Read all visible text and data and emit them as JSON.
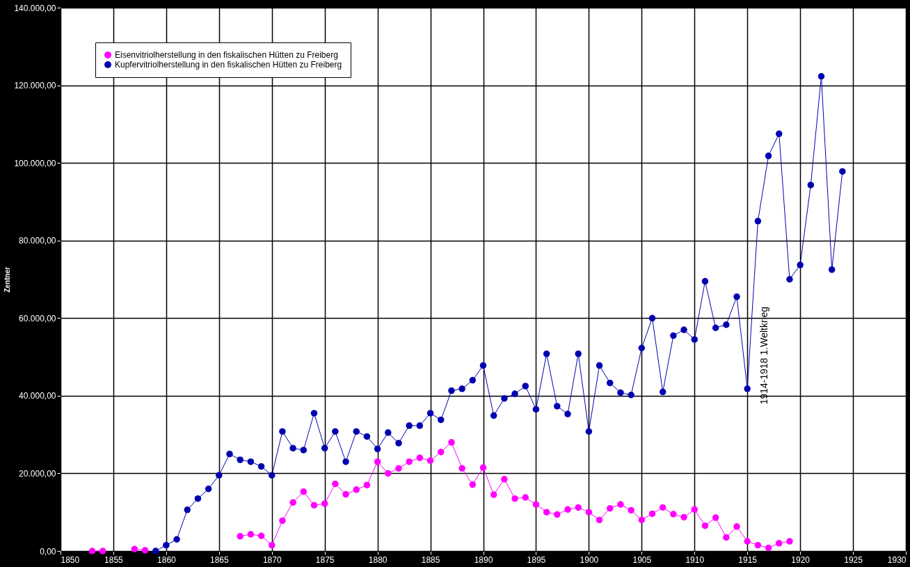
{
  "chart_data": {
    "type": "line",
    "ylabel": "Zentner",
    "x": [
      1853,
      1854,
      1855,
      1856,
      1857,
      1858,
      1859,
      1860,
      1861,
      1862,
      1863,
      1864,
      1865,
      1866,
      1867,
      1868,
      1869,
      1870,
      1871,
      1872,
      1873,
      1874,
      1875,
      1876,
      1877,
      1878,
      1879,
      1880,
      1881,
      1882,
      1883,
      1884,
      1885,
      1886,
      1887,
      1888,
      1889,
      1890,
      1891,
      1892,
      1893,
      1894,
      1895,
      1896,
      1897,
      1898,
      1899,
      1900,
      1901,
      1902,
      1903,
      1904,
      1905,
      1906,
      1907,
      1908,
      1909,
      1910,
      1911,
      1912,
      1913,
      1914,
      1915,
      1916,
      1917,
      1918,
      1919,
      1920,
      1921,
      1922,
      1923,
      1924
    ],
    "series": [
      {
        "name": "Eisenvitriolherstellung in den fiskalischen Hütten zu Freiberg",
        "color": "#ff00ff",
        "values": [
          0,
          0,
          null,
          null,
          500,
          200,
          null,
          null,
          null,
          null,
          null,
          null,
          null,
          null,
          3800,
          4300,
          3900,
          1500,
          7800,
          12500,
          15300,
          11800,
          12200,
          17300,
          14600,
          15800,
          17000,
          23000,
          20000,
          21300,
          23000,
          24000,
          23300,
          25500,
          28000,
          21300,
          17100,
          21500,
          14500,
          18500,
          13500,
          13800,
          12000,
          10000,
          9400,
          10700,
          11200,
          10000,
          8000,
          11000,
          12000,
          10500,
          8000,
          9600,
          11200,
          9500,
          8700,
          10700,
          6500,
          8600,
          3500,
          6300,
          2500,
          1500,
          800,
          2000,
          2500,
          null,
          null,
          null,
          null,
          null
        ]
      },
      {
        "name": "Kupfervitriolherstellung in den fiskalischen Hütten zu Freiberg",
        "color": "#0000b0",
        "values": [
          null,
          null,
          null,
          null,
          null,
          null,
          0,
          1500,
          3000,
          10600,
          13500,
          16000,
          19500,
          25000,
          23500,
          23000,
          21800,
          19500,
          30800,
          26500,
          26000,
          35500,
          26500,
          30800,
          23000,
          30800,
          29500,
          26300,
          30500,
          27800,
          32300,
          32300,
          35500,
          33800,
          41300,
          41800,
          44000,
          47800,
          34900,
          39300,
          40500,
          42500,
          36500,
          50800,
          37300,
          35300,
          50800,
          30800,
          47800,
          43300,
          40800,
          40200,
          52300,
          60000,
          41000,
          55500,
          57000,
          54500,
          69500,
          57500,
          58300,
          65500,
          41800,
          85000,
          101800,
          107500,
          70000,
          73700,
          94300,
          122300,
          72500,
          97800
        ]
      }
    ],
    "xlim": [
      1850,
      1930
    ],
    "xticks": [
      1850,
      1855,
      1860,
      1865,
      1870,
      1875,
      1880,
      1885,
      1890,
      1895,
      1900,
      1905,
      1910,
      1915,
      1920,
      1925,
      1930
    ],
    "ylim": [
      0,
      140000
    ],
    "yticks": [
      {
        "value": 0,
        "label": "0,00"
      },
      {
        "value": 20000,
        "label": "20.000,00"
      },
      {
        "value": 40000,
        "label": "40.000,00"
      },
      {
        "value": 60000,
        "label": "60.000,00"
      },
      {
        "value": 80000,
        "label": "80.000,00"
      },
      {
        "value": 100000,
        "label": "100.000,00"
      },
      {
        "value": 120000,
        "label": "120.000,00"
      },
      {
        "value": 140000,
        "label": "140.000,00"
      }
    ],
    "annotations": [
      "1914-1918  1.Weltkrieg"
    ],
    "grid": true,
    "legend": "top left",
    "marker": "circle",
    "line_style": "solid"
  }
}
